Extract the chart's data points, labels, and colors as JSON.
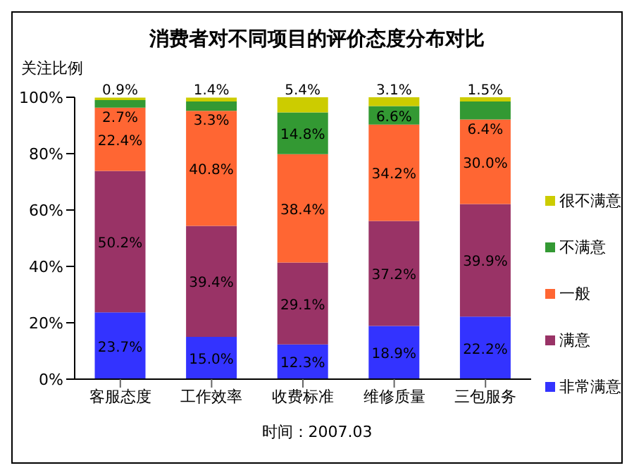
{
  "chart_data": {
    "type": "bar",
    "title": "消费者对不同项目的评价态度分布对比",
    "ylabel": "关注比例",
    "stacked": true,
    "legend": "right",
    "annotations": [
      "时间：2007.03"
    ],
    "categories": [
      "客服态度",
      "工作效率",
      "收费标准",
      "维修质量",
      "三包服务"
    ],
    "ylim": [
      0,
      100
    ],
    "yticks": [
      {
        "value": 0,
        "label": "0%"
      },
      {
        "value": 20,
        "label": "20%"
      },
      {
        "value": 40,
        "label": "40%"
      },
      {
        "value": 60,
        "label": "60%"
      },
      {
        "value": 80,
        "label": "80%"
      },
      {
        "value": 100,
        "label": "100%"
      }
    ],
    "series": [
      {
        "name": "非常满意",
        "color": "#3333ff",
        "values": [
          23.7,
          15.0,
          12.3,
          18.9,
          22.2
        ],
        "value_labels": [
          "23.7%",
          "15.0%",
          "12.3%",
          "18.9%",
          "22.2%"
        ]
      },
      {
        "name": "满意",
        "color": "#993366",
        "values": [
          50.2,
          39.4,
          29.1,
          37.2,
          39.9
        ],
        "value_labels": [
          "50.2%",
          "39.4%",
          "29.1%",
          "37.2%",
          "39.9%"
        ]
      },
      {
        "name": "一般",
        "color": "#ff6633",
        "values": [
          22.4,
          40.8,
          38.4,
          34.2,
          30.0
        ],
        "value_labels": [
          "22.4%",
          "40.8%",
          "38.4%",
          "34.2%",
          "30.0%"
        ]
      },
      {
        "name": "不满意",
        "color": "#339933",
        "values": [
          2.7,
          3.3,
          14.8,
          6.6,
          6.4
        ],
        "value_labels": [
          "2.7%",
          "3.3%",
          "14.8%",
          "6.6%",
          "6.4%"
        ]
      },
      {
        "name": "很不满意",
        "color": "#cccc00",
        "values": [
          0.9,
          1.4,
          5.4,
          3.1,
          1.5
        ],
        "value_labels": [
          "0.9%",
          "1.4%",
          "5.4%",
          "3.1%",
          "1.5%"
        ]
      }
    ]
  }
}
